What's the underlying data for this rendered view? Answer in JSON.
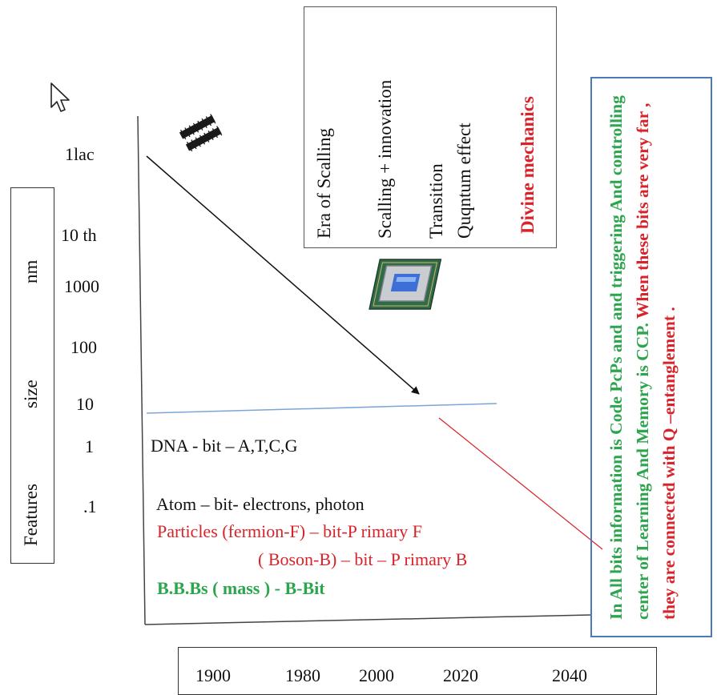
{
  "y_axis": {
    "title_parts": [
      "Features",
      "size",
      "nm"
    ],
    "ticks": [
      "1lac",
      "10 th",
      "1000",
      "100",
      "10",
      "1",
      ".1"
    ]
  },
  "x_axis": {
    "years": [
      "1900",
      "1980",
      "2000",
      "2020",
      "2040"
    ]
  },
  "eras": {
    "era1": "Era of Scalling",
    "era2": "Scalling + innovation",
    "era3_line1": "Transition",
    "era3_line2": "Quqntum effect",
    "era4": "Divine mechanics"
  },
  "content": {
    "dna": "DNA  - bit – A,T,C,G",
    "atom": "Atom – bit- electrons, photon",
    "particles": "Particles (fermion-F) – bit-P rimary F",
    "boson": "( Boson-B) – bit – P rimary B",
    "bbbs": "B.B.Bs  ( mass )  - B-Bit"
  },
  "right_note": {
    "part1": "In All bits information is Code PcPs and and triggering And controlling center of Learning And Memory   is CCP.",
    "part2": " When these bits are very far , they are connected with Q –entanglement ."
  },
  "colors": {
    "green": "#2da44e",
    "red": "#d8232a",
    "blue_border": "#4a7ab8",
    "h_line": "#7aa6d6"
  },
  "icons": [
    "cursor-icon",
    "memory-chips-icon",
    "cpu-chip-icon"
  ]
}
